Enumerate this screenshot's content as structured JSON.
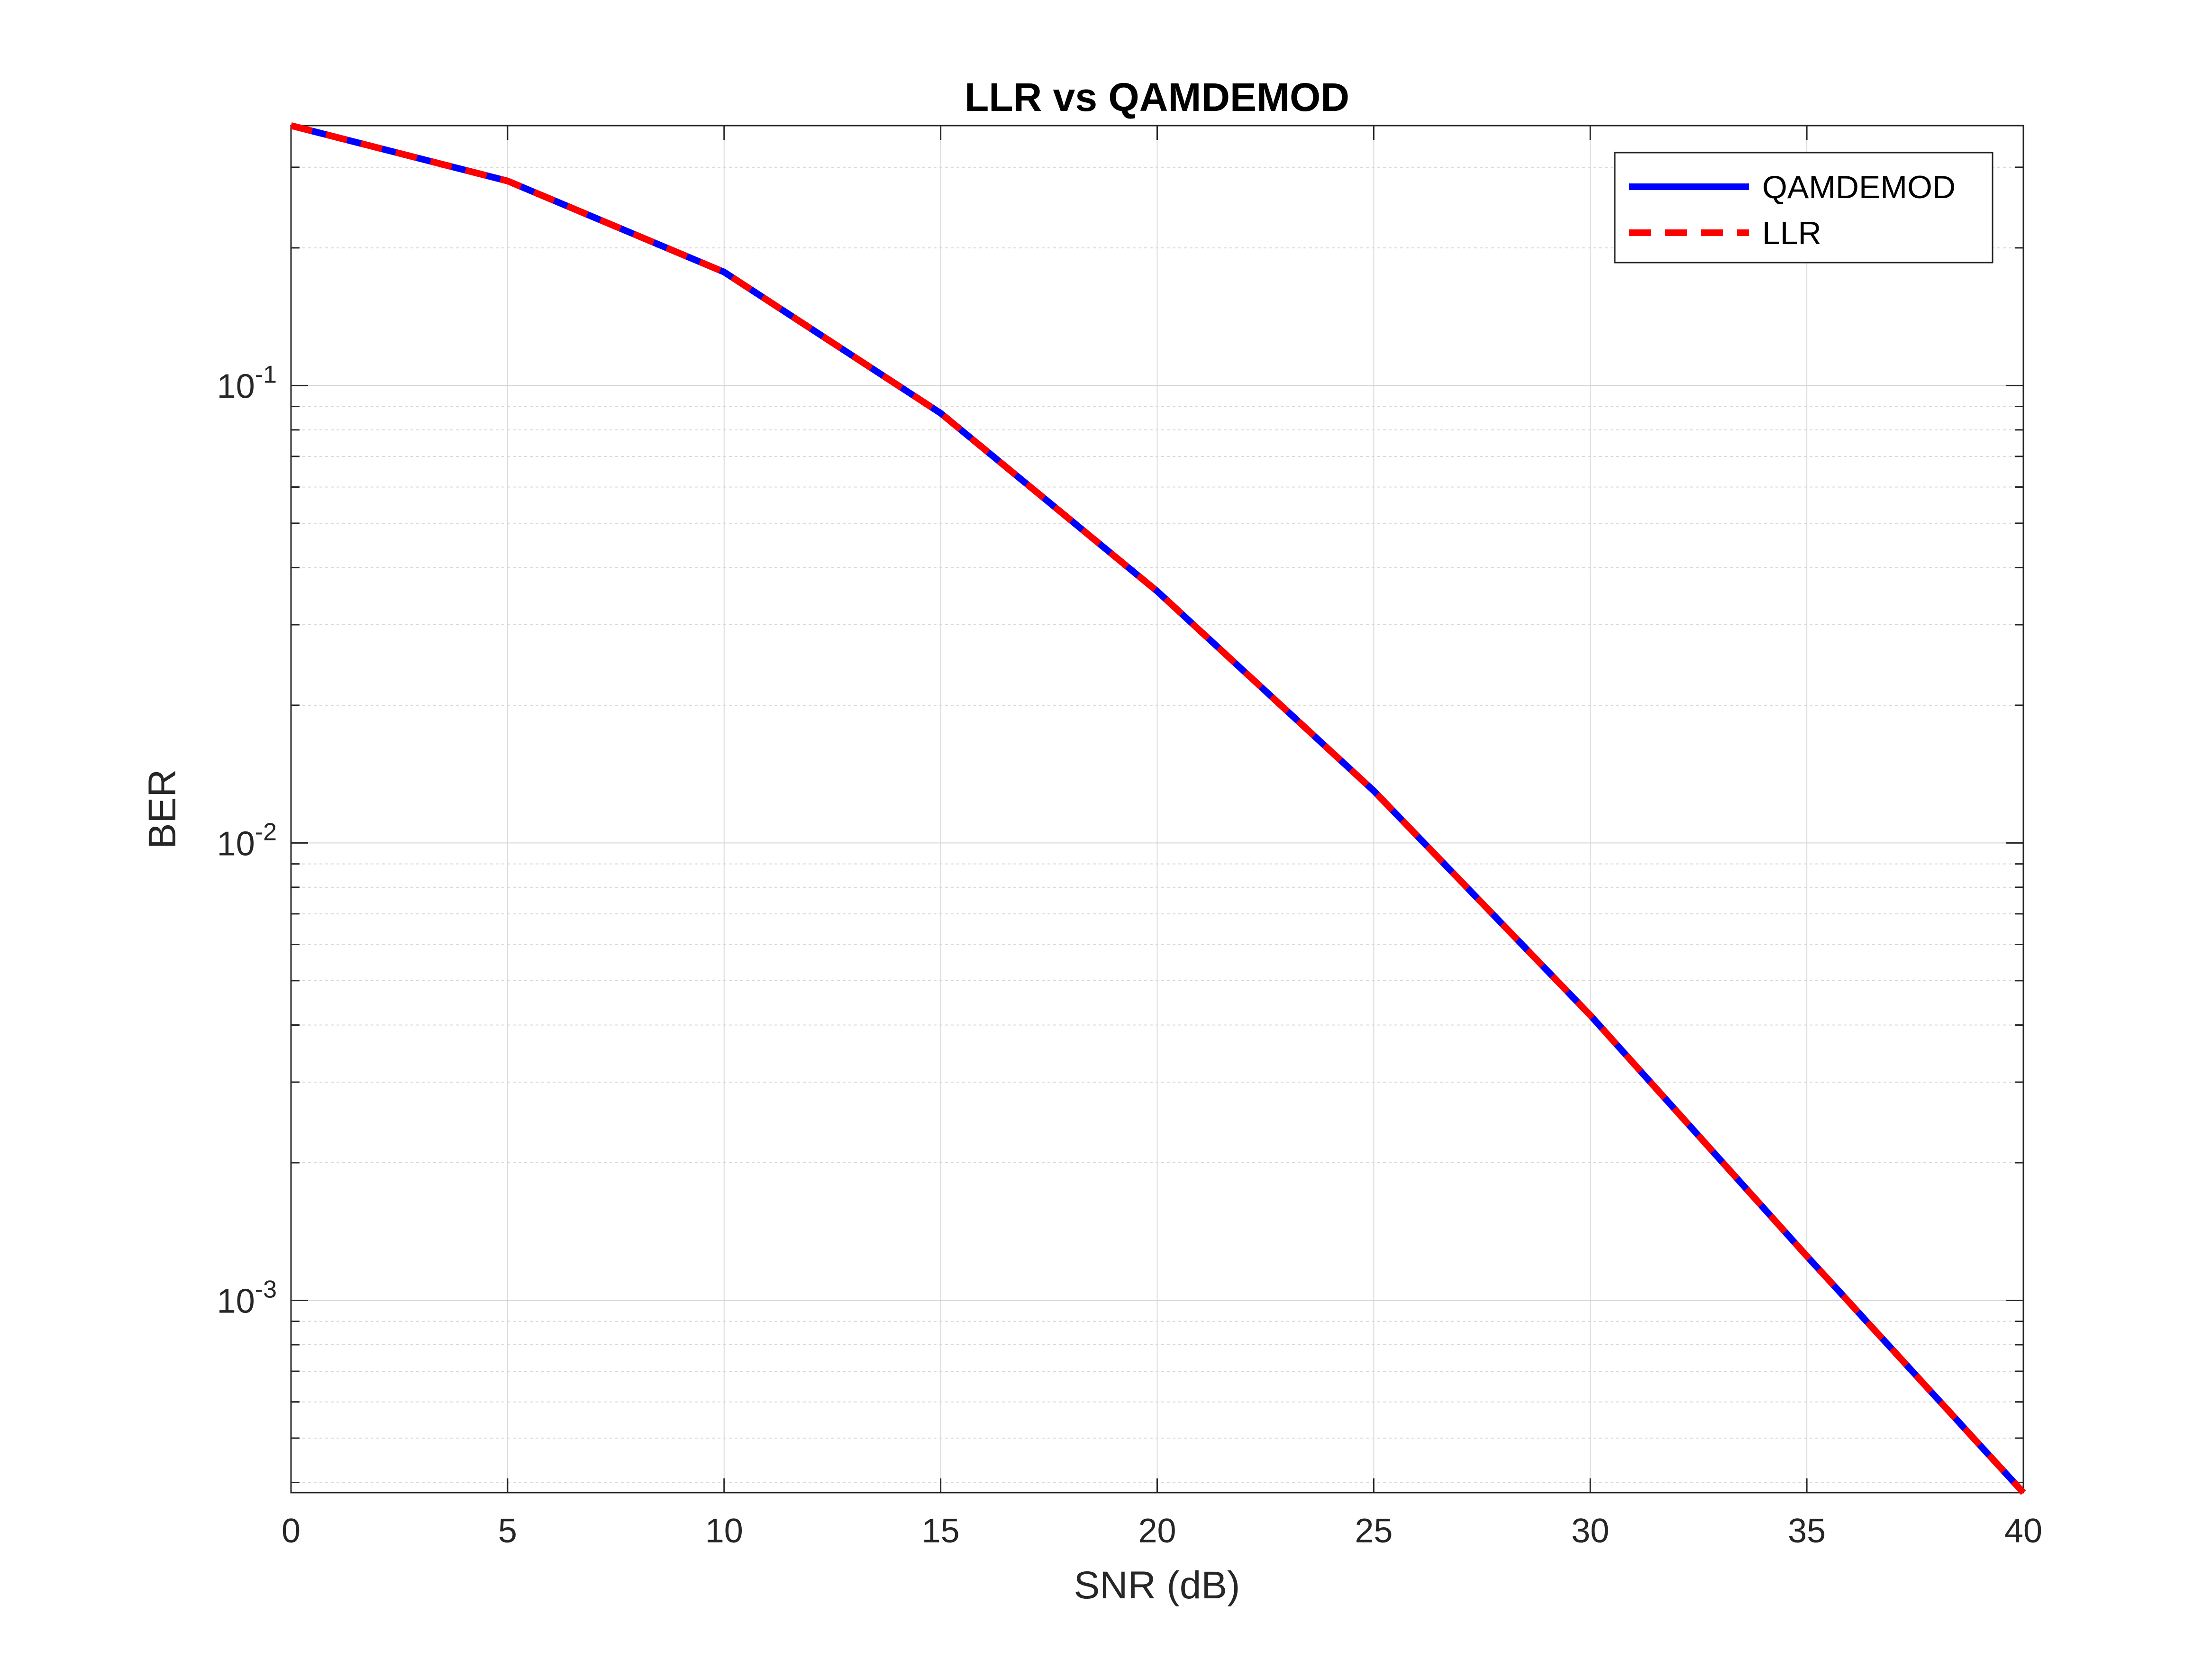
{
  "chart_data": {
    "type": "line",
    "title": "LLR vs QAMDEMOD",
    "xlabel": "SNR (dB)",
    "ylabel": "BER",
    "x_scale": "linear",
    "y_scale": "log",
    "xlim": [
      0,
      40
    ],
    "ylim": [
      0.00038,
      0.37
    ],
    "grid": true,
    "legend_position": "top-right",
    "x_ticks": [
      "0",
      "5",
      "10",
      "15",
      "20",
      "25",
      "30",
      "35",
      "40"
    ],
    "y_ticks": [
      {
        "base": "10",
        "exp": "-3",
        "value": 0.001
      },
      {
        "base": "10",
        "exp": "-2",
        "value": 0.01
      },
      {
        "base": "10",
        "exp": "-1",
        "value": 0.1
      }
    ],
    "x": [
      0,
      5,
      10,
      15,
      20,
      25,
      30,
      35,
      40
    ],
    "series": [
      {
        "name": "QAMDEMOD",
        "color": "#0000ff",
        "style": "solid",
        "values": [
          0.37,
          0.28,
          0.177,
          0.087,
          0.0355,
          0.013,
          0.0042,
          0.00125,
          0.00038
        ]
      },
      {
        "name": "LLR",
        "color": "#ff0000",
        "style": "dashed",
        "values": [
          0.37,
          0.28,
          0.177,
          0.087,
          0.0355,
          0.013,
          0.0042,
          0.00125,
          0.00038
        ]
      }
    ]
  }
}
